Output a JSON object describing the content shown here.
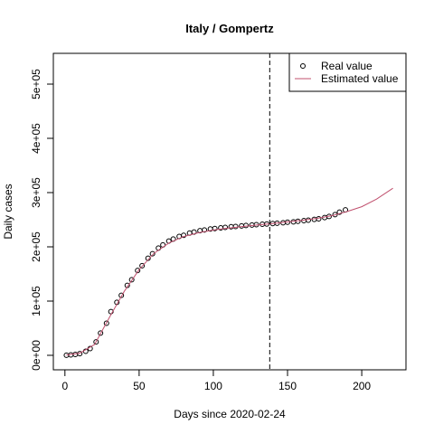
{
  "chart_data": {
    "type": "scatter",
    "title": "Italy / Gompertz",
    "x_label": "Days since 2020-02-24",
    "y_label": "Daily cases",
    "xlim": [
      -7.8,
      229.8
    ],
    "ylim": [
      -26700,
      556700
    ],
    "xticks": [
      0,
      50,
      100,
      150,
      200
    ],
    "yticks": [
      {
        "value": 0,
        "label": "0e+00"
      },
      {
        "value": 100000,
        "label": "1e+05"
      },
      {
        "value": 200000,
        "label": "2e+05"
      },
      {
        "value": 300000,
        "label": "3e+05"
      },
      {
        "value": 400000,
        "label": "4e+05"
      },
      {
        "value": 500000,
        "label": "5e+05"
      }
    ],
    "vline": 138,
    "legend": "topright",
    "series": [
      {
        "name": "Real value",
        "color": "#000000",
        "kind": "points",
        "x": [
          1,
          4,
          7,
          10,
          14,
          17,
          21,
          24,
          28,
          31,
          35,
          38,
          42,
          45,
          49,
          52,
          56,
          59,
          63,
          66,
          70,
          73,
          77,
          80,
          84,
          87,
          91,
          94,
          98,
          101,
          105,
          108,
          112,
          115,
          119,
          122,
          126,
          129,
          133,
          136,
          140,
          143,
          147,
          150,
          154,
          157,
          161,
          164,
          168,
          171,
          175,
          178,
          182,
          185,
          189
        ],
        "values": [
          229,
          822,
          1694,
          3089,
          7375,
          12462,
          24747,
          41035,
          59138,
          80539,
          97689,
          110574,
          128948,
          139422,
          156363,
          165155,
          178972,
          187327,
          197675,
          203591,
          210717,
          214457,
          219070,
          221216,
          225435,
          227364,
          229858,
          231139,
          232997,
          233836,
          234998,
          235763,
          236989,
          237500,
          238499,
          239410,
          240136,
          240760,
          241611,
          242149,
          242827,
          243506,
          244434,
          245338,
          246118,
          247158,
          248229,
          249204,
          250566,
          251713,
          253915,
          256118,
          259345,
          263949,
          268218
        ]
      },
      {
        "name": "Estimated value",
        "color": "#c0506e",
        "kind": "line",
        "x": [
          1,
          10,
          20,
          30,
          40,
          50,
          60,
          70,
          80,
          90,
          100,
          110,
          120,
          130,
          140,
          150,
          160,
          170,
          180,
          190,
          200,
          210,
          221
        ],
        "values": [
          500,
          4000,
          20000,
          70000,
          118000,
          158000,
          188000,
          207000,
          219000,
          226000,
          231000,
          234500,
          237500,
          240500,
          243000,
          246000,
          249000,
          252500,
          257500,
          265000,
          274000,
          288000,
          308000
        ]
      }
    ]
  }
}
